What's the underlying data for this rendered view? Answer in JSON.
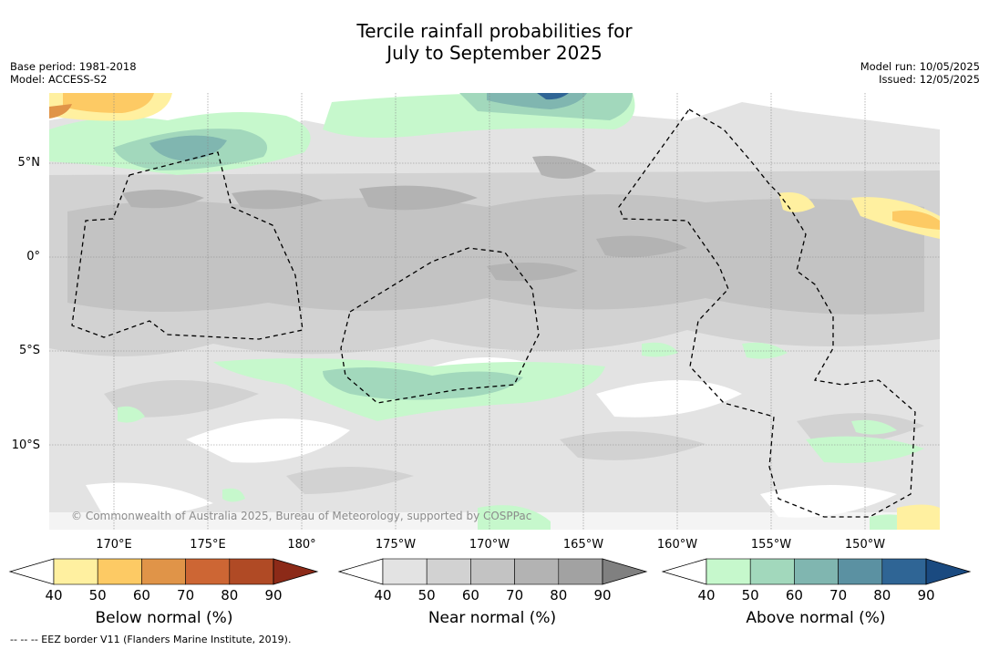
{
  "title": {
    "line1": "Tercile rainfall probabilities for",
    "line2": "July to September 2025"
  },
  "meta_left": {
    "base_period": "Base period: 1981-2018",
    "model": "Model: ACCESS-S2"
  },
  "meta_right": {
    "model_run": "Model run: 10/05/2025",
    "issued": "Issued: 12/05/2025"
  },
  "latitude_labels": [
    "5°N",
    "0°",
    "5°S",
    "10°S"
  ],
  "longitude_labels": [
    "170°E",
    "175°E",
    "180°",
    "175°W",
    "170°W",
    "165°W",
    "160°W",
    "155°W",
    "150°W"
  ],
  "credit": "© Commonwealth of Australia 2025, Bureau of Meteorology, supported by COSPPac",
  "colorbars": [
    {
      "label": "Below normal (%)",
      "ticks": [
        "40",
        "50",
        "60",
        "70",
        "80",
        "90"
      ],
      "colors": [
        "#fff0a0",
        "#fdca64",
        "#e09448",
        "#cd6634",
        "#b04a25",
        "#8c2a18"
      ]
    },
    {
      "label": "Near normal (%)",
      "ticks": [
        "40",
        "50",
        "60",
        "70",
        "80",
        "90"
      ],
      "colors": [
        "#e3e3e3",
        "#d2d2d2",
        "#c3c3c3",
        "#b3b3b3",
        "#a2a2a2",
        "#808080"
      ]
    },
    {
      "label": "Above normal (%)",
      "ticks": [
        "40",
        "50",
        "60",
        "70",
        "80",
        "90"
      ],
      "colors": [
        "#c6f8cc",
        "#a2d8bc",
        "#80b6b0",
        "#5b91a2",
        "#2f6595",
        "#1a4a80"
      ]
    }
  ],
  "footnote": "--  --  -- EEZ border V11 (Flanders Marine Institute, 2019)."
}
